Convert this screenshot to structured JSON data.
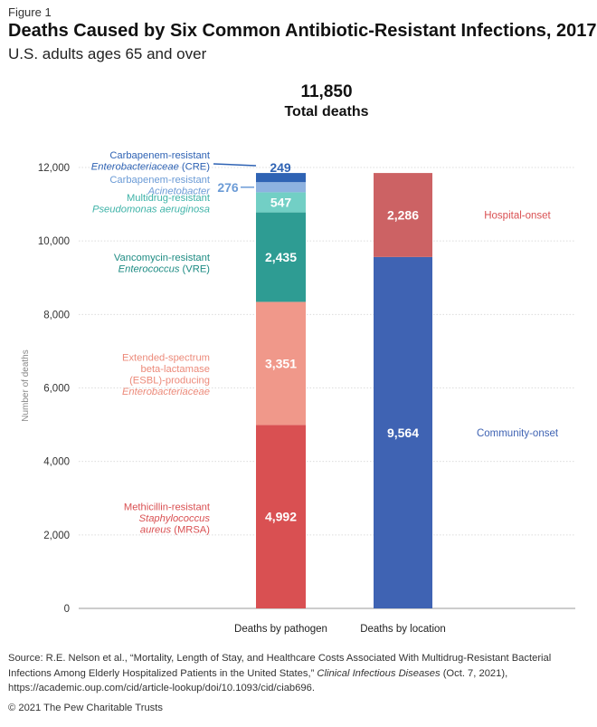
{
  "figure_label": "Figure 1",
  "title": "Deaths Caused by Six Common Antibiotic-Resistant Infections, 2017",
  "subtitle": "U.S. adults ages 65 and over",
  "source": {
    "prefix": "Source: R.E. Nelson et al., “Mortality, Length of Stay, and Healthcare Costs Associated With Multidrug-Resistant Bacterial Infections Among Elderly Hospitalized Patients in the United States,” ",
    "journal": "Clinical Infectious Diseases",
    "suffix": " (Oct. 7, 2021), https://academic.oup.com/cid/article-lookup/doi/10.1093/cid/ciab696."
  },
  "copyright": "© 2021 The Pew Charitable Trusts",
  "chart_data": {
    "type": "bar",
    "stacked": true,
    "total_value": "11,850",
    "total_label": "Total deaths",
    "ylabel": "Number of deaths",
    "ylim": [
      0,
      12000
    ],
    "yticks": [
      0,
      2000,
      4000,
      6000,
      8000,
      10000,
      12000
    ],
    "ytick_labels": [
      "0",
      "2,000",
      "4,000",
      "6,000",
      "8,000",
      "10,000",
      "12,000"
    ],
    "grid": true,
    "categories": [
      "Deaths by pathogen",
      "Deaths by location"
    ],
    "stacks": [
      {
        "category": "Deaths by pathogen",
        "segments": [
          {
            "lines": [
              {
                "t": "Methicillin-resistant",
                "i": false
              },
              {
                "t": "Staphylococcus",
                "i": true
              },
              {
                "t": "aureus",
                "i": true,
                "tail": " (MRSA)"
              }
            ],
            "value": 4992,
            "value_label": "4,992",
            "color": "#d95052",
            "label_color": "#d95052"
          },
          {
            "lines": [
              {
                "t": "Extended-spectrum",
                "i": false
              },
              {
                "t": "beta-lactamase",
                "i": false
              },
              {
                "t": "(ESBL)-producing",
                "i": false
              },
              {
                "t": "Enterobacteriaceae",
                "i": true
              }
            ],
            "value": 3351,
            "value_label": "3,351",
            "color": "#f0988a",
            "label_color": "#ec8a7a"
          },
          {
            "lines": [
              {
                "t": "Vancomycin-resistant",
                "i": false
              },
              {
                "t": "Enterococcus",
                "i": true,
                "tail": " (VRE)"
              }
            ],
            "value": 2435,
            "value_label": "2,435",
            "color": "#2e9c93",
            "label_color": "#1f8c84"
          },
          {
            "lines": [
              {
                "t": "Multidrug-resistant",
                "i": false
              },
              {
                "t": "Pseudomonas aeruginosa",
                "i": true
              }
            ],
            "value": 547,
            "value_label": "547",
            "color": "#72cfc5",
            "label_color": "#3fb3a8"
          },
          {
            "lines": [
              {
                "t": "Carbapenem-resistant",
                "i": false
              },
              {
                "t": "Acinetobacter",
                "i": true
              }
            ],
            "value": 276,
            "value_label": "276",
            "color": "#8eb2e0",
            "label_color": "#6b9bd6"
          },
          {
            "lines": [
              {
                "t": "Carbapenem-resistant",
                "i": false
              },
              {
                "t": "Enterobacteriaceae",
                "i": true,
                "tail": " (CRE)"
              }
            ],
            "value": 249,
            "value_label": "249",
            "color": "#2f63b4",
            "label_color": "#2f63b4"
          }
        ]
      },
      {
        "category": "Deaths by location",
        "segments": [
          {
            "lines": [
              {
                "t": "Community-onset",
                "i": false
              }
            ],
            "value": 9564,
            "value_label": "9,564",
            "color": "#3f63b3",
            "label_color": "#3f63b3"
          },
          {
            "lines": [
              {
                "t": "Hospital-onset",
                "i": false
              }
            ],
            "value": 2286,
            "value_label": "2,286",
            "color": "#cc6264",
            "label_color": "#d95052"
          }
        ]
      }
    ]
  }
}
